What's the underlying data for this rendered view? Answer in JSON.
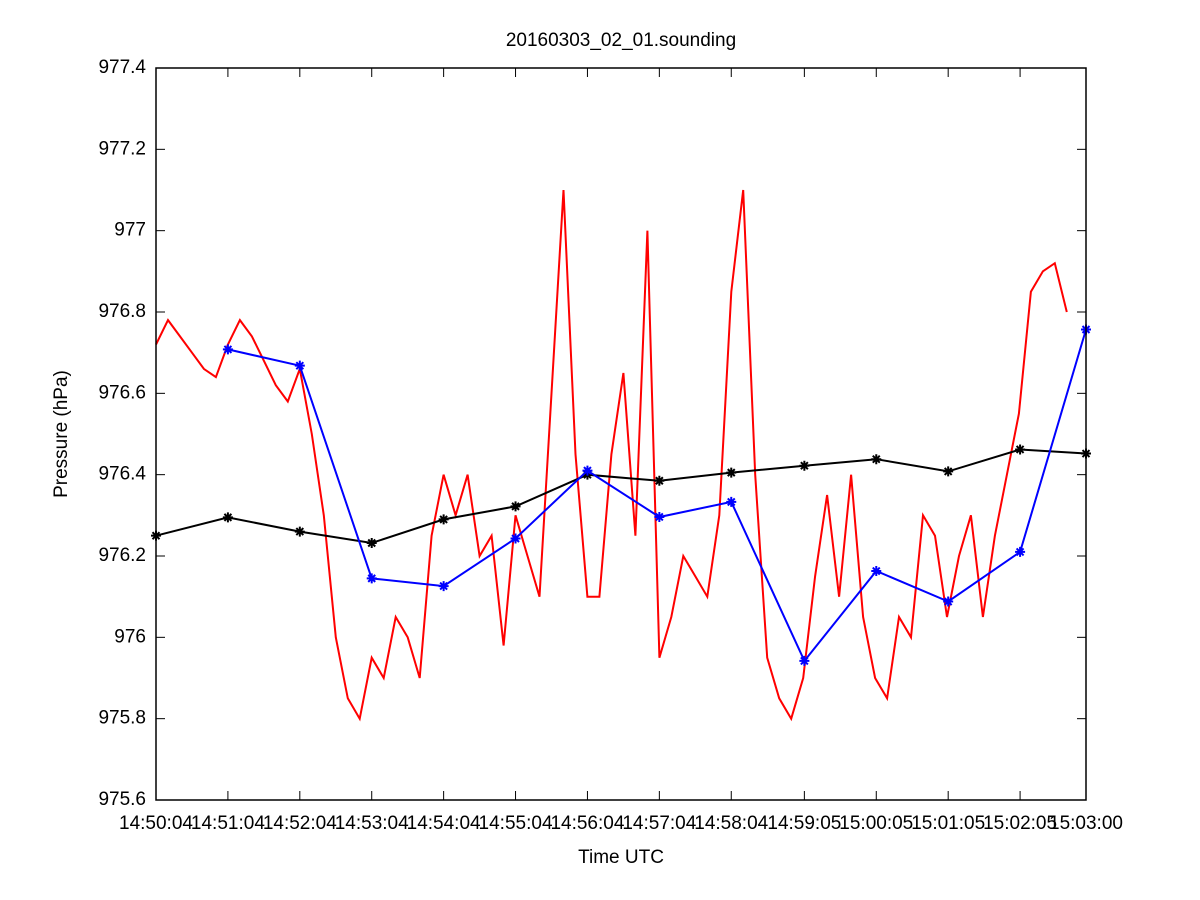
{
  "chart_data": {
    "type": "line",
    "title": "20160303_02_01.sounding",
    "x_label": "Time UTC",
    "y_label": "Pressure (hPa)",
    "xlim": [
      "14:50:04",
      "15:03:00"
    ],
    "xticks": [
      "14:50:04",
      "14:51:04",
      "14:52:04",
      "14:53:04",
      "14:54:04",
      "14:55:04",
      "14:56:04",
      "14:57:04",
      "14:58:04",
      "14:59:05",
      "15:00:05",
      "15:01:05",
      "15:02:05",
      "15:03:00"
    ],
    "ylim": [
      975.6,
      977.4
    ],
    "yticks": [
      975.6,
      975.8,
      976,
      976.2,
      976.4,
      976.6,
      976.8,
      977,
      977.2,
      977.4
    ],
    "series": [
      {
        "color": "#ff0000",
        "marker": "none",
        "x": [
          "14:50:04",
          "14:50:14",
          "14:50:24",
          "14:50:34",
          "14:50:44",
          "14:50:54",
          "14:51:04",
          "14:51:14",
          "14:51:24",
          "14:51:34",
          "14:51:44",
          "14:51:54",
          "14:52:04",
          "14:52:14",
          "14:52:24",
          "14:52:34",
          "14:52:44",
          "14:52:54",
          "14:53:04",
          "14:53:14",
          "14:53:24",
          "14:53:34",
          "14:53:44",
          "14:53:54",
          "14:54:04",
          "14:54:14",
          "14:54:24",
          "14:54:34",
          "14:54:44",
          "14:54:54",
          "14:55:04",
          "14:55:14",
          "14:55:24",
          "14:55:34",
          "14:55:44",
          "14:55:54",
          "14:56:04",
          "14:56:14",
          "14:56:24",
          "14:56:34",
          "14:56:44",
          "14:56:54",
          "14:57:04",
          "14:57:14",
          "14:57:24",
          "14:57:34",
          "14:57:44",
          "14:57:54",
          "14:58:04",
          "14:58:14",
          "14:58:24",
          "14:58:34",
          "14:58:44",
          "14:58:54",
          "14:59:04",
          "14:59:14",
          "14:59:24",
          "14:59:34",
          "14:59:44",
          "14:59:54",
          "15:00:04",
          "15:00:14",
          "15:00:24",
          "15:00:34",
          "15:00:44",
          "15:00:54",
          "15:01:04",
          "15:01:14",
          "15:01:24",
          "15:01:34",
          "15:01:44",
          "15:01:54",
          "15:02:04",
          "15:02:14",
          "15:02:24",
          "15:02:34",
          "15:02:44"
        ],
        "values": [
          976.72,
          976.78,
          976.74,
          976.7,
          976.66,
          976.64,
          976.72,
          976.78,
          976.74,
          976.68,
          976.62,
          976.58,
          976.66,
          976.5,
          976.3,
          976,
          975.85,
          975.8,
          975.95,
          975.9,
          976.05,
          976,
          975.9,
          976.25,
          976.4,
          976.3,
          976.4,
          976.2,
          976.25,
          975.98,
          976.3,
          976.2,
          976.1,
          976.6,
          977.1,
          976.45,
          976.1,
          976.1,
          976.45,
          976.65,
          976.25,
          977,
          975.95,
          976.05,
          976.2,
          976.15,
          976.1,
          976.3,
          976.85,
          977.1,
          976.4,
          975.95,
          975.85,
          975.8,
          975.9,
          976.15,
          976.35,
          976.1,
          976.4,
          976.05,
          975.9,
          975.85,
          976.05,
          976,
          976.3,
          976.25,
          976.05,
          976.2,
          976.3,
          976.05,
          976.25,
          976.4,
          976.55,
          976.85,
          976.9,
          976.92,
          976.8
        ]
      },
      {
        "color": "#000000",
        "marker": "*",
        "x": [
          "14:50:04",
          "14:51:04",
          "14:52:04",
          "14:53:04",
          "14:54:04",
          "14:55:04",
          "14:56:04",
          "14:57:04",
          "14:58:04",
          "14:59:05",
          "15:00:05",
          "15:01:05",
          "15:02:05",
          "15:03:00"
        ],
        "values": [
          976.25,
          976.295,
          976.26,
          976.232,
          976.29,
          976.322,
          976.4,
          976.385,
          976.405,
          976.422,
          976.438,
          976.408,
          976.462,
          976.452
        ]
      },
      {
        "color": "#0000ff",
        "marker": "*",
        "x": [
          "14:50:04",
          "14:51:04",
          "14:52:04",
          "14:53:04",
          "14:54:04",
          "14:55:04",
          "14:56:04",
          "14:57:04",
          "14:58:04",
          "14:59:05",
          "15:00:05",
          "15:01:05",
          "15:02:05",
          "15:03:00"
        ],
        "values": [
          null,
          976.708,
          976.668,
          976.145,
          976.126,
          976.243,
          976.41,
          976.296,
          976.333,
          975.942,
          976.163,
          976.088,
          976.21,
          976.757
        ]
      }
    ]
  }
}
